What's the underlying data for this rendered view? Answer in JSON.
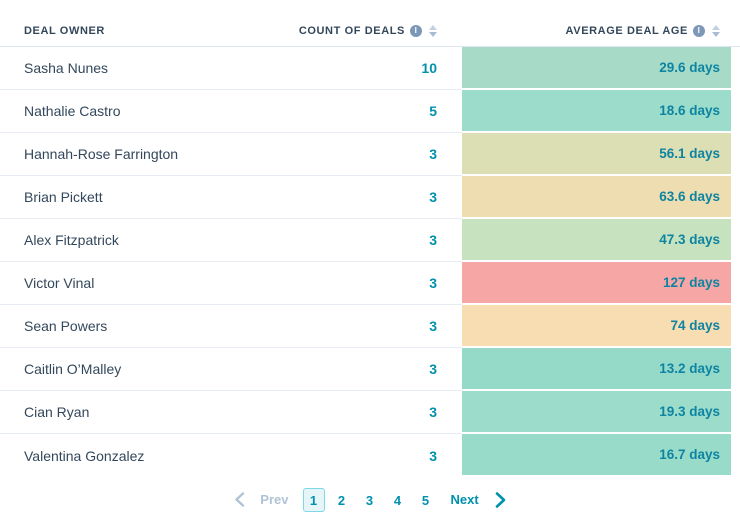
{
  "header": {
    "columns": [
      {
        "label": "DEAL OWNER"
      },
      {
        "label": "COUNT OF DEALS",
        "info_icon": "info-icon",
        "sortable": true
      },
      {
        "label": "AVERAGE DEAL AGE",
        "info_icon": "info-icon",
        "sortable": true
      }
    ]
  },
  "table": {
    "rows": [
      {
        "owner": "Sasha Nunes",
        "count": "10",
        "age": "29.6 days",
        "age_color": "#a7dbc8"
      },
      {
        "owner": "Nathalie Castro",
        "count": "5",
        "age": "18.6 days",
        "age_color": "#9bdcca"
      },
      {
        "owner": "Hannah-Rose Farrington",
        "count": "3",
        "age": "56.1 days",
        "age_color": "#dcdeb3"
      },
      {
        "owner": "Brian Pickett",
        "count": "3",
        "age": "63.6 days",
        "age_color": "#edddb1"
      },
      {
        "owner": "Alex Fitzpatrick",
        "count": "3",
        "age": "47.3 days",
        "age_color": "#c6e2bf"
      },
      {
        "owner": "Victor Vinal",
        "count": "3",
        "age": "127 days",
        "age_color": "#f6a6a5"
      },
      {
        "owner": "Sean Powers",
        "count": "3",
        "age": "74 days",
        "age_color": "#f8dcb2"
      },
      {
        "owner": "Caitlin O’Malley",
        "count": "3",
        "age": "13.2 days",
        "age_color": "#95dac9"
      },
      {
        "owner": "Cian Ryan",
        "count": "3",
        "age": "19.3 days",
        "age_color": "#9cdcca"
      },
      {
        "owner": "Valentina Gonzalez",
        "count": "3",
        "age": "16.7 days",
        "age_color": "#99dbc9"
      }
    ]
  },
  "pagination": {
    "prev_label": "Prev",
    "next_label": "Next",
    "pages": [
      "1",
      "2",
      "3",
      "4",
      "5"
    ],
    "current_page": "1"
  },
  "colors": {
    "accent_teal": "#0091ae",
    "age_text": "#0d84a2",
    "header_text": "#33475b",
    "muted_gray_blue": "#b0c3d6",
    "divider": "#e7ecf3",
    "info_icon_bg": "#7c98b6",
    "current_page_bg": "#e5f5f8",
    "current_page_border": "#7fd8e8"
  }
}
